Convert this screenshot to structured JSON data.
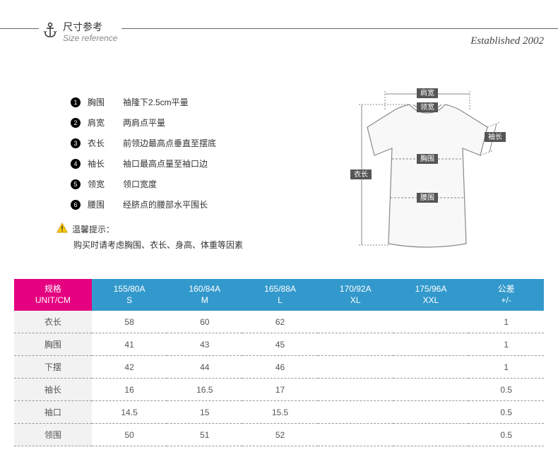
{
  "header": {
    "title_cn": "尺寸参考",
    "title_en": "Size reference",
    "brand": "Established 2002"
  },
  "definitions": [
    {
      "n": "1",
      "term": "胸围",
      "desc": "袖隆下2.5cm平量"
    },
    {
      "n": "2",
      "term": "肩宽",
      "desc": "两肩点平量"
    },
    {
      "n": "3",
      "term": "衣长",
      "desc": "前领边最高点垂直至摆底"
    },
    {
      "n": "4",
      "term": "袖长",
      "desc": "袖口最高点量至袖口边"
    },
    {
      "n": "5",
      "term": "领宽",
      "desc": "领口宽度"
    },
    {
      "n": "6",
      "term": "腰围",
      "desc": "经脐点的腰部水平围长"
    }
  ],
  "tip": {
    "title": "温馨提示：",
    "body": "购买时请考虑胸围、衣长、身高、体重等因素"
  },
  "diagram_labels": {
    "shoulder": "肩宽",
    "neck": "领宽",
    "sleeve": "袖长",
    "chest": "胸围",
    "length": "衣长",
    "waist": "腰围"
  },
  "table": {
    "header": {
      "spec": {
        "line1": "规格",
        "line2": "UNIT/CM"
      },
      "sizes": [
        {
          "line1": "155/80A",
          "line2": "S"
        },
        {
          "line1": "160/84A",
          "line2": "M"
        },
        {
          "line1": "165/88A",
          "line2": "L"
        },
        {
          "line1": "170/92A",
          "line2": "XL"
        },
        {
          "line1": "175/96A",
          "line2": "XXL"
        }
      ],
      "tolerance": {
        "line1": "公差",
        "line2": "+/-"
      }
    },
    "rows": [
      {
        "label": "衣长",
        "values": [
          "58",
          "60",
          "62",
          "",
          ""
        ],
        "tol": "1"
      },
      {
        "label": "胸围",
        "values": [
          "41",
          "43",
          "45",
          "",
          ""
        ],
        "tol": "1"
      },
      {
        "label": "下摆",
        "values": [
          "42",
          "44",
          "46",
          "",
          ""
        ],
        "tol": "1"
      },
      {
        "label": "袖长",
        "values": [
          "16",
          "16.5",
          "17",
          "",
          ""
        ],
        "tol": "0.5"
      },
      {
        "label": "袖口",
        "values": [
          "14.5",
          "15",
          "15.5",
          "",
          ""
        ],
        "tol": "0.5"
      },
      {
        "label": "领围",
        "values": [
          "50",
          "51",
          "52",
          "",
          ""
        ],
        "tol": "0.5"
      }
    ]
  },
  "colors": {
    "spec_header_bg": "#e4007f",
    "size_header_bg": "#3399cc",
    "row_label_bg": "#f2f2f2",
    "dash_border": "#999999"
  }
}
